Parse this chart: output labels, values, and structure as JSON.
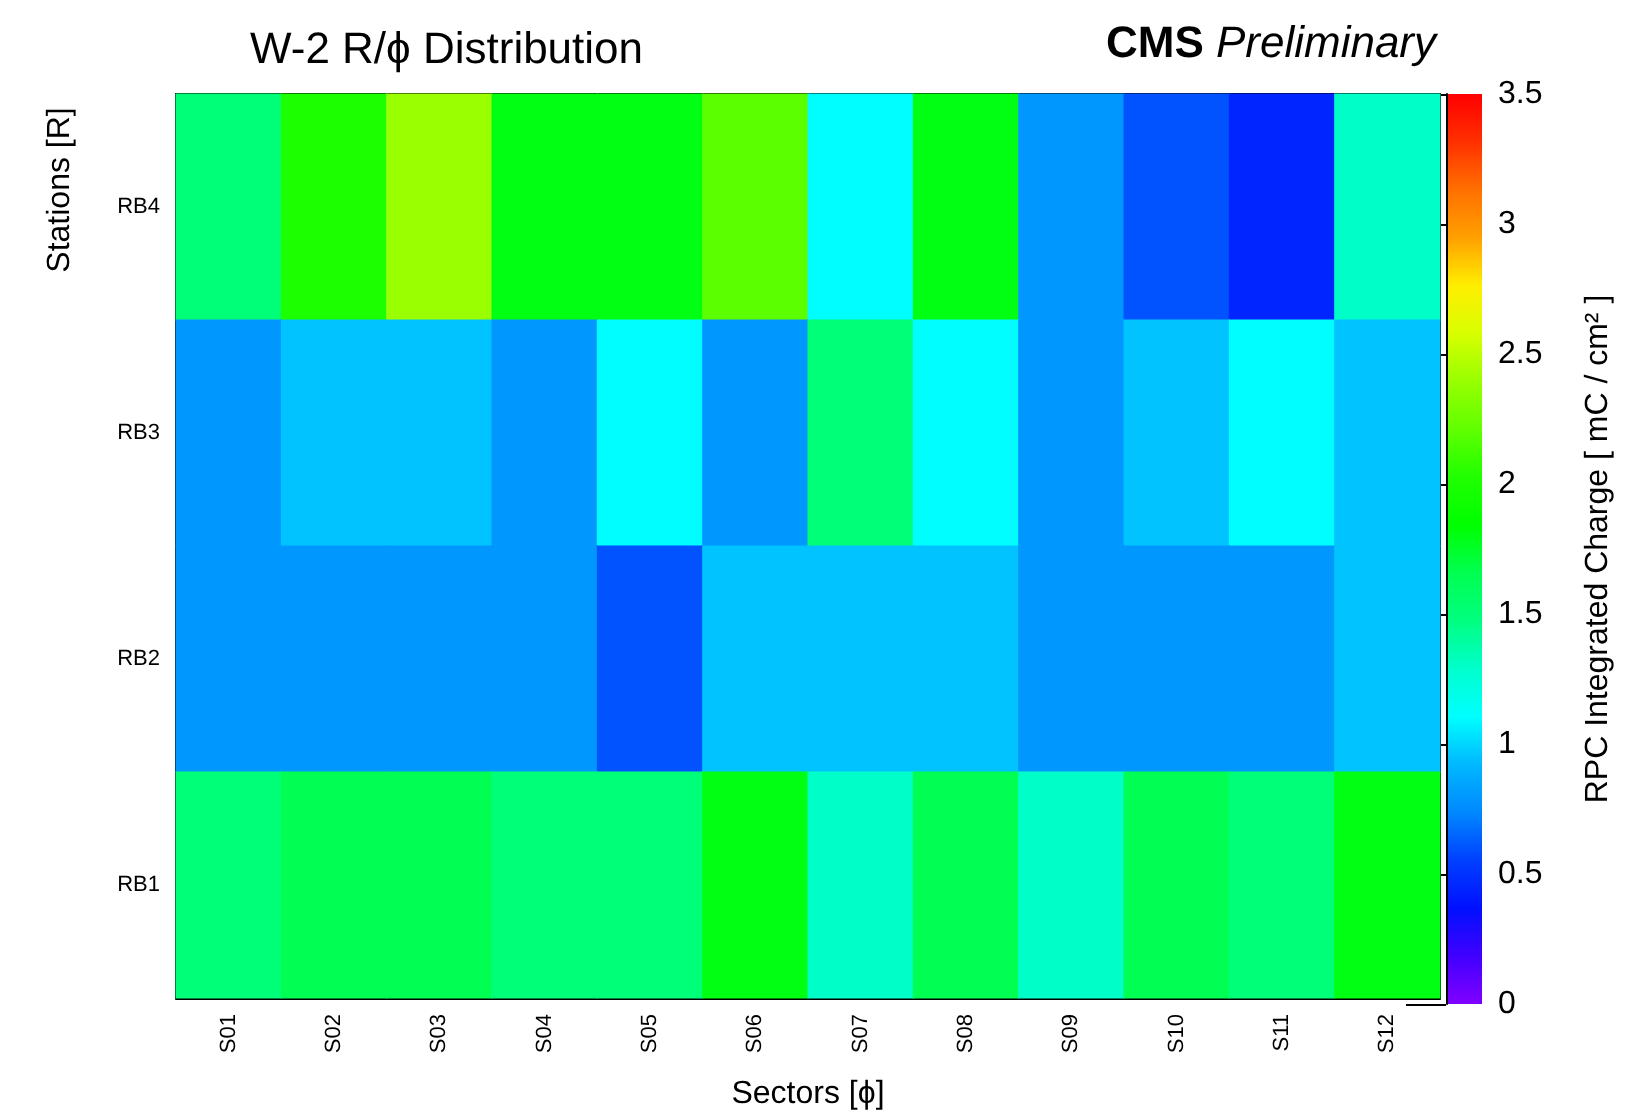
{
  "chart_data": {
    "type": "heatmap",
    "title": "W-2 R/ϕ Distribution",
    "annotations": [
      "CMS Preliminary"
    ],
    "xlabel": "Sectors [ϕ]",
    "ylabel": "Stations [R]",
    "clabel": "RPC Integrated Charge [ mC / cm² ]",
    "categories": [
      "S01",
      "S02",
      "S03",
      "S04",
      "S05",
      "S06",
      "S07",
      "S08",
      "S09",
      "S10",
      "S11",
      "S12"
    ],
    "y_categories": [
      "RB4",
      "RB3",
      "RB2",
      "RB1"
    ],
    "cells": [
      [
        1.5,
        2.0,
        2.4,
        1.8,
        1.8,
        2.2,
        1.1,
        1.8,
        0.8,
        0.6,
        0.45,
        1.3
      ],
      [
        0.8,
        0.95,
        0.95,
        0.8,
        1.1,
        0.8,
        1.5,
        1.1,
        0.8,
        0.95,
        1.1,
        0.95
      ],
      [
        0.8,
        0.8,
        0.8,
        0.8,
        0.6,
        0.95,
        0.95,
        0.95,
        0.8,
        0.8,
        0.8,
        0.95
      ],
      [
        1.5,
        1.65,
        1.65,
        1.5,
        1.5,
        1.8,
        1.3,
        1.65,
        1.3,
        1.65,
        1.5,
        1.8
      ]
    ],
    "clim": [
      0,
      3.5
    ],
    "cticks": [
      0,
      0.5,
      1,
      1.5,
      2,
      2.5,
      3,
      3.5
    ]
  }
}
